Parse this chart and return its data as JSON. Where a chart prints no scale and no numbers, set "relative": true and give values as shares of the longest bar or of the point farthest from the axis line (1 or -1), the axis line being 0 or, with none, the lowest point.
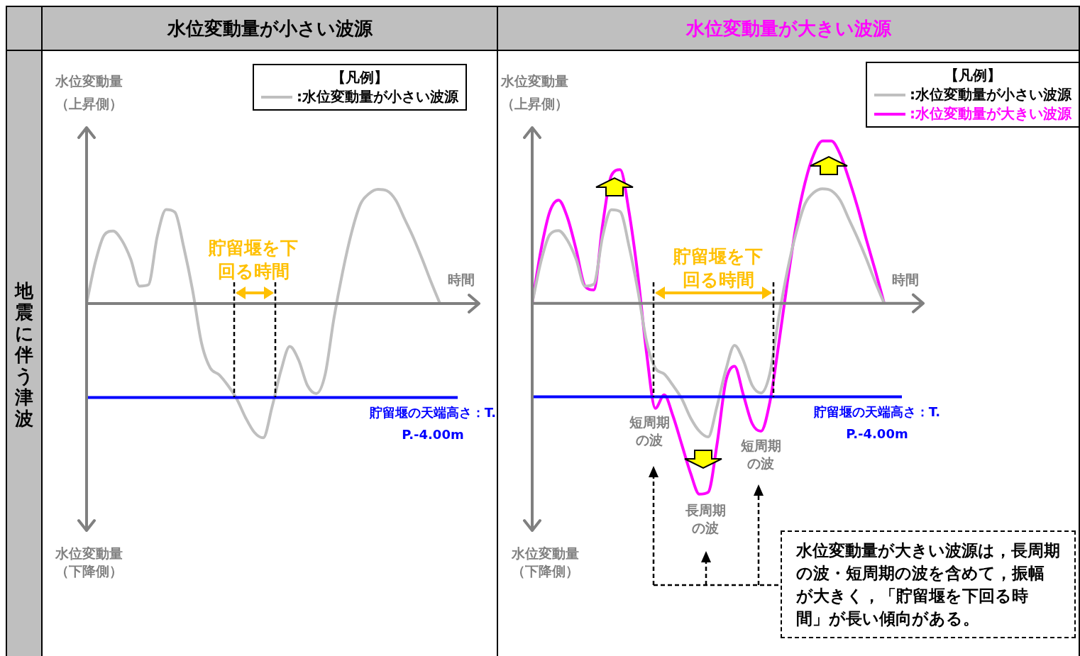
{
  "chart_data": [
    {
      "type": "line",
      "title": "水位変動量が小さい波源",
      "xlabel": "時間",
      "ylabel": "水位変動量（上昇側）",
      "legend_title": "【凡例】",
      "legend": "top right",
      "marker": "none",
      "relative": true,
      "categories": [
        null,
        null,
        null,
        null,
        null,
        null,
        null,
        null,
        null,
        null,
        null,
        null,
        null,
        null,
        null,
        null,
        null,
        null,
        null,
        null,
        null,
        null,
        null,
        null,
        null,
        null,
        null,
        null,
        null,
        null,
        null,
        null,
        null,
        null,
        null,
        null,
        null,
        null,
        null,
        null,
        null
      ],
      "series": [
        {
          "name": ":水位変動量が小さい波源",
          "color": "#bfbfbf",
          "values": [
            0,
            0.31,
            0.51,
            0.54,
            0.47,
            0.33,
            0.13,
            0.14,
            0.5,
            0.7,
            0.68,
            0.42,
            0.1,
            -0.29,
            -0.48,
            -0.53,
            -0.61,
            -0.71,
            -0.85,
            -0.96,
            -1,
            -0.77,
            -0.5,
            -0.32,
            -0.42,
            -0.61,
            -0.67,
            -0.53,
            -0.11,
            0.24,
            0.53,
            0.74,
            0.82,
            0.85,
            0.84,
            0.77,
            0.63,
            0.49,
            0.33,
            0.16,
            0
          ]
        }
      ],
      "ref_lines": [
        {
          "axis": "y",
          "value": -0.7,
          "label": "貯留堰の天端高さ：T.P.-4.00m",
          "color": "#0000ff"
        }
      ],
      "annotations": [
        "地震に伴う津波",
        "水位変動量（下降側）",
        "貯留堰を下回る時間"
      ]
    },
    {
      "type": "line",
      "title": "水位変動量が大きい波源",
      "xlabel": "時間",
      "ylabel": "水位変動量（上昇側）",
      "legend_title": "【凡例】",
      "legend": "top right",
      "marker": "none",
      "relative": true,
      "categories": [
        null,
        null,
        null,
        null,
        null,
        null,
        null,
        null,
        null,
        null,
        null,
        null,
        null,
        null,
        null,
        null,
        null,
        null,
        null,
        null,
        null,
        null,
        null,
        null,
        null,
        null,
        null,
        null,
        null,
        null,
        null,
        null,
        null,
        null,
        null,
        null,
        null,
        null,
        null,
        null,
        null
      ],
      "series": [
        {
          "name": ":水位変動量が小さい波源",
          "color": "#bfbfbf",
          "values": [
            0,
            0.22,
            0.36,
            0.38,
            0.33,
            0.23,
            0.09,
            0.1,
            0.35,
            0.49,
            0.48,
            0.3,
            0.07,
            -0.2,
            -0.34,
            -0.37,
            -0.43,
            -0.5,
            -0.6,
            -0.67,
            -0.7,
            -0.54,
            -0.35,
            -0.22,
            -0.3,
            -0.43,
            -0.47,
            -0.37,
            -0.08,
            0.17,
            0.37,
            0.52,
            0.58,
            0.6,
            0.59,
            0.54,
            0.44,
            0.34,
            0.23,
            0.11,
            0
          ]
        },
        {
          "name": ":水位変動量が大きい波源",
          "color": "#ff00ff",
          "values": [
            0,
            0.28,
            0.48,
            0.54,
            0.45,
            0.28,
            0.09,
            0.07,
            0.41,
            0.67,
            0.7,
            0.48,
            0.15,
            -0.26,
            -0.55,
            -0.48,
            -0.59,
            -0.74,
            -0.89,
            -1,
            -0.99,
            -0.74,
            -0.41,
            -0.33,
            -0.48,
            -0.63,
            -0.67,
            -0.52,
            -0.22,
            0.11,
            0.41,
            0.63,
            0.78,
            0.85,
            0.85,
            0.78,
            0.65,
            0.5,
            0.33,
            0.17,
            0
          ]
        }
      ],
      "ref_lines": [
        {
          "axis": "y",
          "value": -0.49,
          "label": "貯留堰の天端高さ：T.P.-4.00m",
          "color": "#0000ff"
        }
      ],
      "annotations": [
        "水位変動量（下降側）",
        "貯留堰を下回る時間",
        "短周期の波",
        "短周期の波",
        "長周期の波",
        "水位変動量が大きい波源は，長周期の波・短周期の波を含めて，振幅が大きく，「貯留堰を下回る時間」が長い傾向がある。"
      ]
    }
  ]
}
